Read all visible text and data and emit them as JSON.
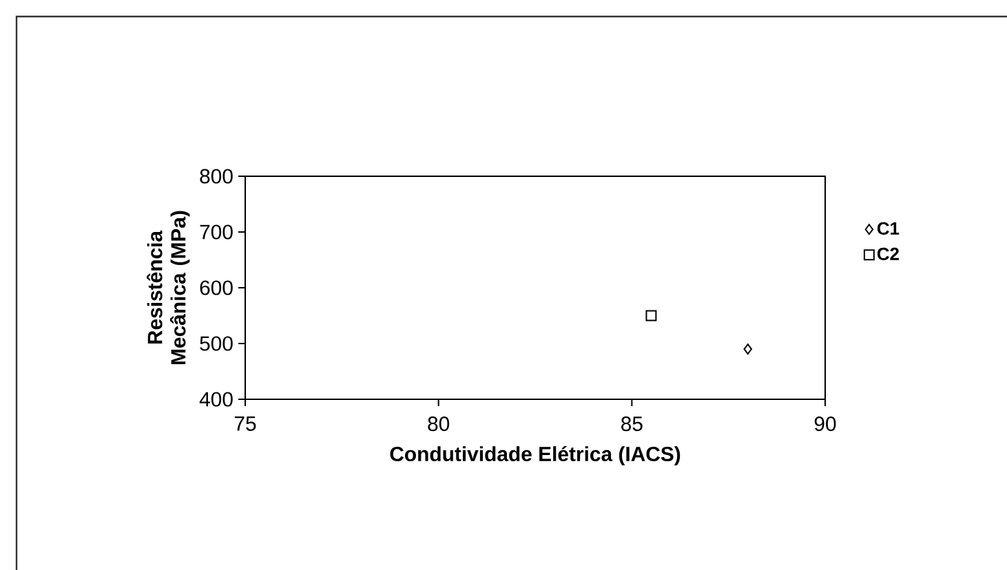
{
  "chart_data": {
    "type": "scatter",
    "xlabel": "Condutividade Elétrica (IACS)",
    "ylabel": "Resistência Mecânica (MPa)",
    "series": [
      {
        "name": "C1",
        "color": "#000000",
        "marker": "diamond",
        "x": [
          88
        ],
        "values": [
          490
        ]
      },
      {
        "name": "C2",
        "color": "#000000",
        "marker": "square",
        "x": [
          85.5
        ],
        "values": [
          550
        ]
      }
    ],
    "xlim": [
      75,
      90
    ],
    "xticks": [
      75,
      80,
      85,
      90
    ],
    "ylim": [
      400,
      800
    ],
    "yticks": [
      400,
      500,
      600,
      700,
      800
    ],
    "grid": false,
    "legend": "right"
  }
}
